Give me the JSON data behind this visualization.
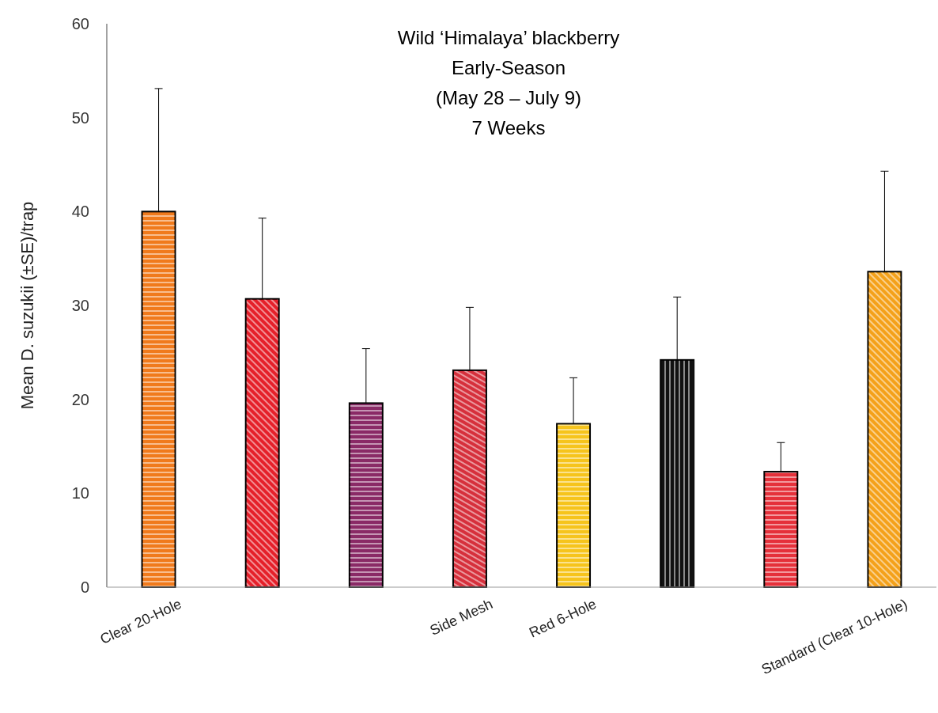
{
  "chart_data": {
    "type": "bar",
    "title": "Wild ‘Himalaya’ blackberry\nEarly-Season\n(May 28 – July 9)\n7 Weeks",
    "ylabel": "Mean D. suzukii (±SE)/trap",
    "categories": [
      "Clear 20-Hole",
      null,
      null,
      "Side Mesh",
      "Red 6-Hole",
      null,
      null,
      "Standard (Clear 10-Hole)"
    ],
    "values": [
      40.0,
      30.7,
      19.6,
      23.1,
      17.4,
      24.2,
      12.3,
      33.6
    ],
    "colors": [
      "#f07a1c",
      "#e5202a",
      "#8a2a66",
      "#d6303c",
      "#f6c41c",
      "#111111",
      "#e5303a",
      "#f4a11a"
    ],
    "errors": [
      [
        40.0,
        53.1
      ],
      [
        30.7,
        39.3
      ],
      [
        19.6,
        25.4
      ],
      [
        23.1,
        29.8
      ],
      [
        17.4,
        22.3
      ],
      [
        24.2,
        30.9
      ],
      [
        12.3,
        15.4
      ],
      [
        33.6,
        44.3
      ]
    ],
    "ylim": [
      0,
      60
    ],
    "yticks": [
      0,
      10,
      20,
      30,
      40,
      50,
      60
    ],
    "grid": false
  }
}
